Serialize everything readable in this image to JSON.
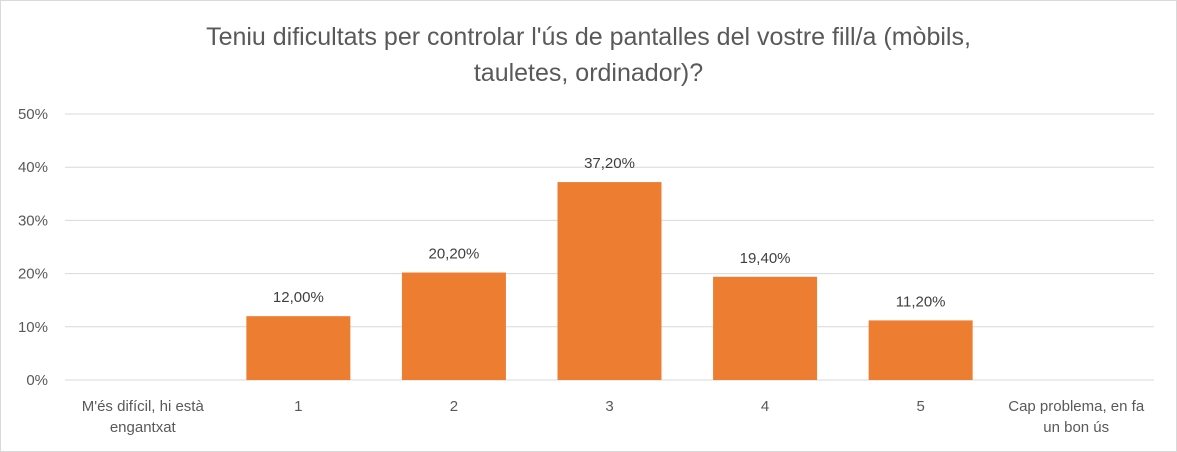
{
  "chart_data": {
    "type": "bar",
    "title_lines": [
      "Teniu dificultats per controlar l'ús de pantalles del vostre fill/a (mòbils,",
      "tauletes, ordinador)?"
    ],
    "categories": [
      [
        "M'és difícil, hi està",
        "engantxat"
      ],
      [
        "1"
      ],
      [
        "2"
      ],
      [
        "3"
      ],
      [
        "4"
      ],
      [
        "5"
      ],
      [
        "Cap problema, en fa",
        "un bon ús"
      ]
    ],
    "values": [
      null,
      12.0,
      20.2,
      37.2,
      19.4,
      11.2,
      null
    ],
    "data_labels": [
      "",
      "12,00%",
      "20,20%",
      "37,20%",
      "19,40%",
      "11,20%",
      ""
    ],
    "y_ticks": [
      "0%",
      "10%",
      "20%",
      "30%",
      "40%",
      "50%"
    ],
    "ylim": [
      0,
      50
    ],
    "grid": true,
    "bar_color": "#ED7D31",
    "grid_color": "#d9d9d9",
    "text_color": "#595959"
  }
}
